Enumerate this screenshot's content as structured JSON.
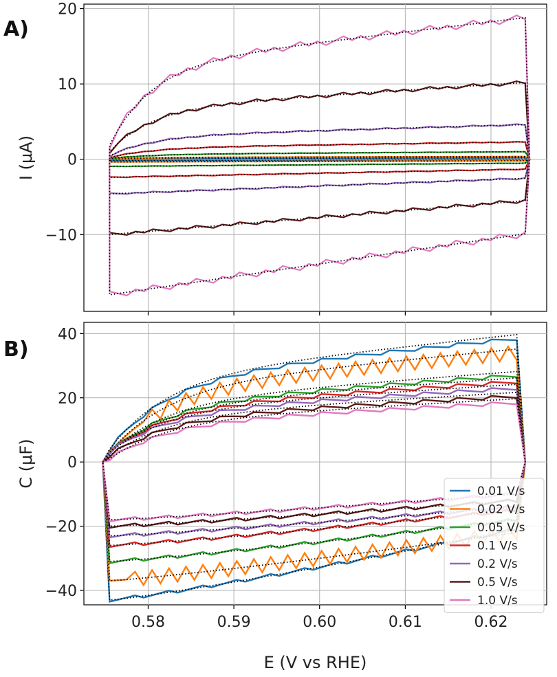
{
  "chart_data": [
    {
      "panel": "A)",
      "type": "line",
      "title": "",
      "xlabel": "",
      "ylabel": "I (μA)",
      "xlim": [
        0.5725,
        0.6265
      ],
      "ylim": [
        -20.2,
        20.6
      ],
      "yticks": [
        -10,
        0,
        10,
        20
      ],
      "ytick_labels": [
        "−10",
        "0",
        "10",
        "20"
      ],
      "grid": true,
      "legend": "none",
      "series": [
        {
          "scan_rate": "0.01 V/s",
          "color": "#1f77b4",
          "i_max": 0.18,
          "i_min": -0.18
        },
        {
          "scan_rate": "0.02 V/s",
          "color": "#ff7f0e",
          "i_max": 0.36,
          "i_min": -0.36
        },
        {
          "scan_rate": "0.05 V/s",
          "color": "#2ca02c",
          "i_max": 1.0,
          "i_min": -0.95
        },
        {
          "scan_rate": "0.1 V/s",
          "color": "#d62728",
          "i_max": 2.3,
          "i_min": -2.4
        },
        {
          "scan_rate": "0.2 V/s",
          "color": "#9467bd",
          "i_max": 4.6,
          "i_min": -4.6
        },
        {
          "scan_rate": "0.5 V/s",
          "color": "#5b1a1a",
          "i_max": 10.2,
          "i_min": -10.0
        },
        {
          "scan_rate": "1.0 V/s",
          "color": "#e377c2",
          "i_max": 18.8,
          "i_min": -18.0
        }
      ]
    },
    {
      "panel": "B)",
      "type": "line",
      "title": "",
      "xlabel": "E (V vs RHE)",
      "ylabel": "C (μF)",
      "xlim": [
        0.5725,
        0.6265
      ],
      "ylim": [
        -44.5,
        43.5
      ],
      "xticks": [
        0.58,
        0.59,
        0.6,
        0.61,
        0.62
      ],
      "xtick_labels": [
        "0.58",
        "0.59",
        "0.60",
        "0.61",
        "0.62"
      ],
      "yticks": [
        -40,
        -20,
        0,
        20,
        40
      ],
      "ytick_labels": [
        "−40",
        "−20",
        "0",
        "20",
        "40"
      ],
      "grid": true,
      "legend": "bottom-right",
      "series": [
        {
          "name": "0.01 V/s",
          "color": "#1f77b4",
          "c_top_start": 4,
          "c_top_end": 38.5,
          "c_bot_start": -43,
          "c_bot_end": -21
        },
        {
          "name": "0.02 V/s",
          "color": "#ff7f0e",
          "c_top_start": 3,
          "c_top_end": 34,
          "c_bot_start": -37,
          "c_bot_end": -22
        },
        {
          "name": "0.05 V/s",
          "color": "#2ca02c",
          "c_top_start": 3,
          "c_top_end": 27,
          "c_bot_start": -31,
          "c_bot_end": -18
        },
        {
          "name": "0.1 V/s",
          "color": "#d62728",
          "c_top_start": 3,
          "c_top_end": 25,
          "c_bot_start": -26,
          "c_bot_end": -15
        },
        {
          "name": "0.2 V/s",
          "color": "#9467bd",
          "c_top_start": 3,
          "c_top_end": 23,
          "c_bot_start": -23,
          "c_bot_end": -14
        },
        {
          "name": "0.5 V/s",
          "color": "#5b1a1a",
          "c_top_start": 2,
          "c_top_end": 20.5,
          "c_bot_start": -20,
          "c_bot_end": -12
        },
        {
          "name": "1.0 V/s",
          "color": "#e377c2",
          "c_top_start": 1,
          "c_top_end": 18.5,
          "c_bot_start": -18,
          "c_bot_end": -10
        }
      ]
    }
  ]
}
